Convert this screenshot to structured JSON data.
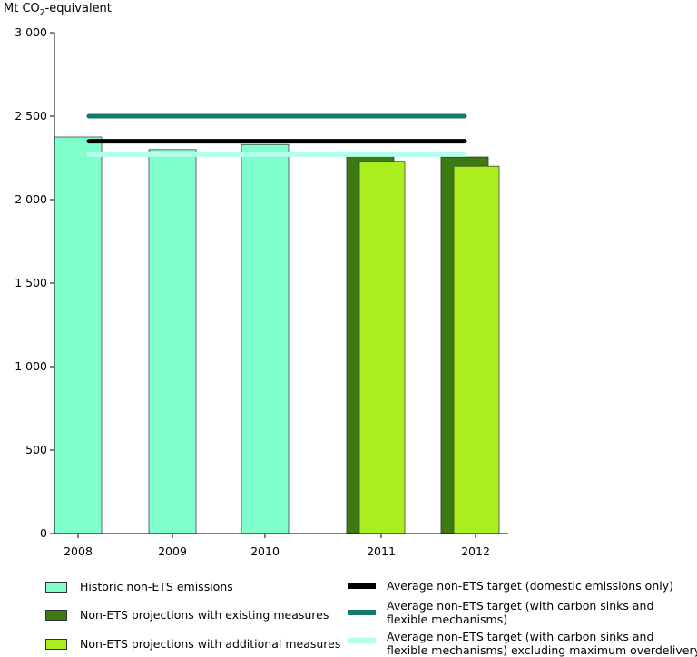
{
  "chart_data": {
    "type": "bar",
    "ylabel_pre": "Mt CO",
    "ylabel_sub": "2",
    "ylabel_post": "-equivalent",
    "ylim": [
      0,
      3000
    ],
    "yticks": [
      {
        "value": 0,
        "label": "0"
      },
      {
        "value": 500,
        "label": "500"
      },
      {
        "value": 1000,
        "label": "1 000"
      },
      {
        "value": 1500,
        "label": "1 500"
      },
      {
        "value": 2000,
        "label": "2 000"
      },
      {
        "value": 2500,
        "label": "2 500"
      },
      {
        "value": 3000,
        "label": "3 000"
      }
    ],
    "categories": [
      "2008",
      "2009",
      "2010",
      "2011",
      "2012"
    ],
    "series": [
      {
        "name": "Historic non-ETS emissions",
        "color": "#80ffcc",
        "values": [
          2375,
          2300,
          2330,
          null,
          null
        ]
      },
      {
        "name": "Non-ETS projections with existing measures",
        "color": "#3d7a12",
        "values": [
          null,
          null,
          null,
          2260,
          2255
        ]
      },
      {
        "name": "Non-ETS projections with additional measures",
        "color": "#aaee1d",
        "values": [
          null,
          null,
          null,
          2230,
          2200
        ]
      }
    ],
    "targets": [
      {
        "name": "Average non-ETS target (domestic emissions only)",
        "color": "#000000",
        "value": 2350
      },
      {
        "name": "Average non-ETS target (with carbon sinks and flexible mechanisms)",
        "color": "#157a6e",
        "value": 2500
      },
      {
        "name": "Average non-ETS target (with carbon sinks and flexible mechanisms) excluding maximum overdelivery",
        "color": "#b3ffee",
        "value": 2270
      }
    ]
  },
  "legend": {
    "historic": "Historic non-ETS emissions",
    "existing": "Non-ETS projections with existing measures",
    "additional": "Non-ETS projections with additional measures",
    "target_domestic": "Average non-ETS target (domestic emissions only)",
    "target_sinks_line1": "Average non-ETS target (with carbon sinks and",
    "target_sinks_line2": "flexible mechanisms)",
    "target_excl_line1": "Average non-ETS target (with carbon sinks and",
    "target_excl_line2": "flexible mechanisms) excluding maximum overdelivery"
  }
}
